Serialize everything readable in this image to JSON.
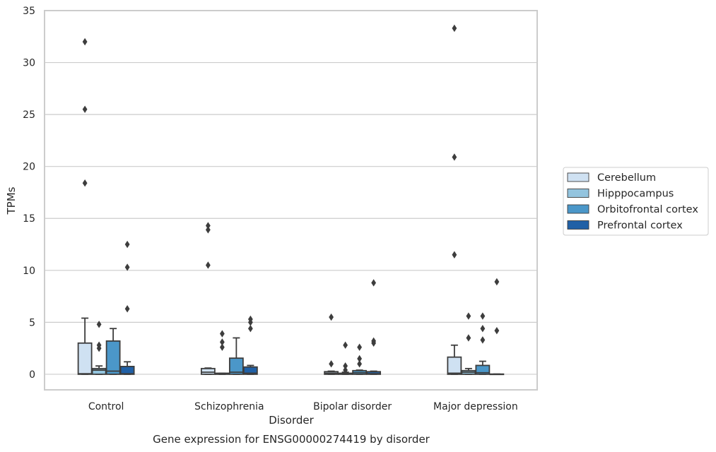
{
  "chart_data": {
    "type": "box",
    "title": "",
    "caption": "Gene expression for ENSG00000274419 by disorder",
    "xlabel": "Disorder",
    "ylabel": "TPMs",
    "ylim": [
      -1.5,
      35
    ],
    "yticks": [
      0,
      5,
      10,
      15,
      20,
      25,
      30,
      35
    ],
    "grid": "horizontal",
    "legend_position": "right",
    "categories": [
      "Control",
      "Schizophrenia",
      "Bipolar disorder",
      "Major depression"
    ],
    "series": [
      {
        "name": "Cerebellum",
        "color": "#cfe1f2",
        "boxes": [
          {
            "whisker_low": 0,
            "q1": 0,
            "median": 0.05,
            "q3": 3.0,
            "whisker_high": 5.4,
            "outliers": [
              18.4,
              25.5,
              32.0
            ]
          },
          {
            "whisker_low": 0,
            "q1": 0,
            "median": 0.2,
            "q3": 0.55,
            "whisker_high": 0.6,
            "outliers": [
              10.5,
              13.9,
              14.3
            ]
          },
          {
            "whisker_low": 0,
            "q1": 0,
            "median": 0.1,
            "q3": 0.25,
            "whisker_high": 0.3,
            "outliers": [
              1.0,
              5.5
            ]
          },
          {
            "whisker_low": 0,
            "q1": 0,
            "median": 0.1,
            "q3": 1.65,
            "whisker_high": 2.8,
            "outliers": [
              11.5,
              20.9,
              33.3
            ]
          }
        ]
      },
      {
        "name": "Hipppocampus",
        "color": "#93c4de",
        "boxes": [
          {
            "whisker_low": 0,
            "q1": 0,
            "median": 0.4,
            "q3": 0.55,
            "whisker_high": 0.8,
            "outliers": [
              2.5,
              2.8,
              4.8
            ]
          },
          {
            "whisker_low": 0,
            "q1": 0,
            "median": 0.05,
            "q3": 0.1,
            "whisker_high": 0.1,
            "outliers": [
              2.6,
              3.1,
              3.9
            ]
          },
          {
            "whisker_low": 0,
            "q1": 0,
            "median": 0.05,
            "q3": 0.1,
            "whisker_high": 0.2,
            "outliers": [
              0.4,
              0.8,
              2.8
            ]
          },
          {
            "whisker_low": 0,
            "q1": 0,
            "median": 0.2,
            "q3": 0.35,
            "whisker_high": 0.55,
            "outliers": [
              3.5,
              5.6
            ]
          }
        ]
      },
      {
        "name": "Orbitofrontal cortex",
        "color": "#4b97c9",
        "boxes": [
          {
            "whisker_low": 0,
            "q1": 0,
            "median": 0.3,
            "q3": 3.2,
            "whisker_high": 4.4,
            "outliers": []
          },
          {
            "whisker_low": 0,
            "q1": 0,
            "median": 0.2,
            "q3": 1.55,
            "whisker_high": 3.5,
            "outliers": []
          },
          {
            "whisker_low": 0,
            "q1": 0,
            "median": 0.15,
            "q3": 0.35,
            "whisker_high": 0.4,
            "outliers": [
              1.0,
              1.5,
              2.6
            ]
          },
          {
            "whisker_low": 0,
            "q1": 0,
            "median": 0.15,
            "q3": 0.85,
            "whisker_high": 1.25,
            "outliers": [
              3.3,
              4.4,
              5.6
            ]
          }
        ]
      },
      {
        "name": "Prefrontal cortex",
        "color": "#2060a6",
        "boxes": [
          {
            "whisker_low": 0,
            "q1": 0,
            "median": 0.05,
            "q3": 0.75,
            "whisker_high": 1.2,
            "outliers": [
              6.3,
              10.3,
              12.5
            ]
          },
          {
            "whisker_low": 0,
            "q1": 0,
            "median": 0.1,
            "q3": 0.7,
            "whisker_high": 0.85,
            "outliers": [
              4.4,
              5.0,
              5.3
            ]
          },
          {
            "whisker_low": 0,
            "q1": 0,
            "median": 0.05,
            "q3": 0.25,
            "whisker_high": 0.3,
            "outliers": [
              3.0,
              3.2,
              8.8
            ]
          },
          {
            "whisker_low": 0,
            "q1": 0,
            "median": 0.0,
            "q3": 0.02,
            "whisker_high": 0.02,
            "outliers": [
              4.2,
              8.9
            ]
          }
        ]
      }
    ]
  }
}
